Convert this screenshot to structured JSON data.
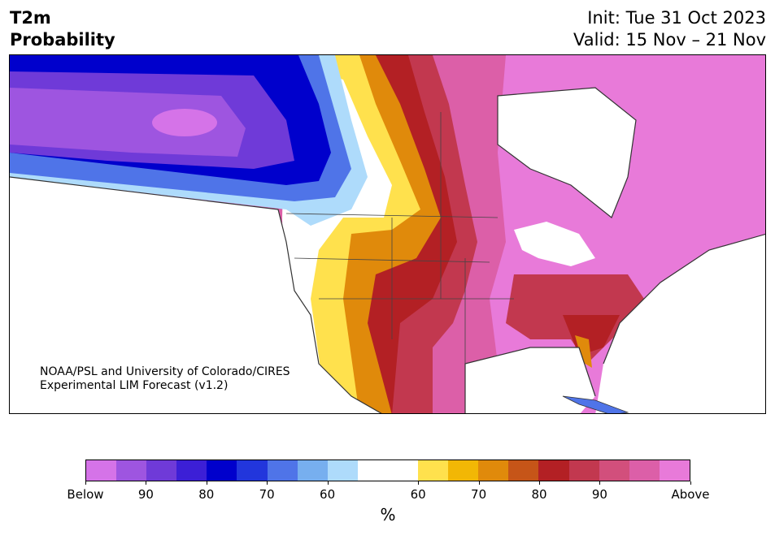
{
  "title": {
    "line1": "T2m",
    "line2": "Probability"
  },
  "dates": {
    "init": "Init: Tue 31 Oct 2023",
    "valid": "Valid: 15 Nov – 21 Nov"
  },
  "credit": {
    "line1": "NOAA/PSL and University of Colorado/CIRES",
    "line2": "Experimental LIM Forecast (v1.2)"
  },
  "colorbar": {
    "unit": "%",
    "colors": [
      "#d573e8",
      "#9e55e0",
      "#6f3ad8",
      "#3c1fd6",
      "#0000cc",
      "#2236dc",
      "#4f74e8",
      "#77afef",
      "#aedbfb",
      "#ffffff",
      "#ffffff",
      "#ffe14d",
      "#f2b705",
      "#e08a0b",
      "#c65518",
      "#b32024",
      "#c2384f",
      "#d24f7c",
      "#dc5fa8",
      "#e87ad9"
    ],
    "tick_labels": [
      "Below",
      "90",
      "80",
      "70",
      "60",
      "60",
      "70",
      "80",
      "90",
      "Above"
    ]
  },
  "map_colors": {
    "cold_strong": "#0000cc",
    "cold_mid": "#4f74e8",
    "cold_light": "#aedbfb",
    "cold_purple": "#6f3ad8",
    "warm_yellow": "#ffe14d",
    "warm_orange": "#e08a0b",
    "warm_red": "#b32024",
    "warm_pink": "#dc5fa8",
    "warm_magenta": "#e87ad9"
  }
}
